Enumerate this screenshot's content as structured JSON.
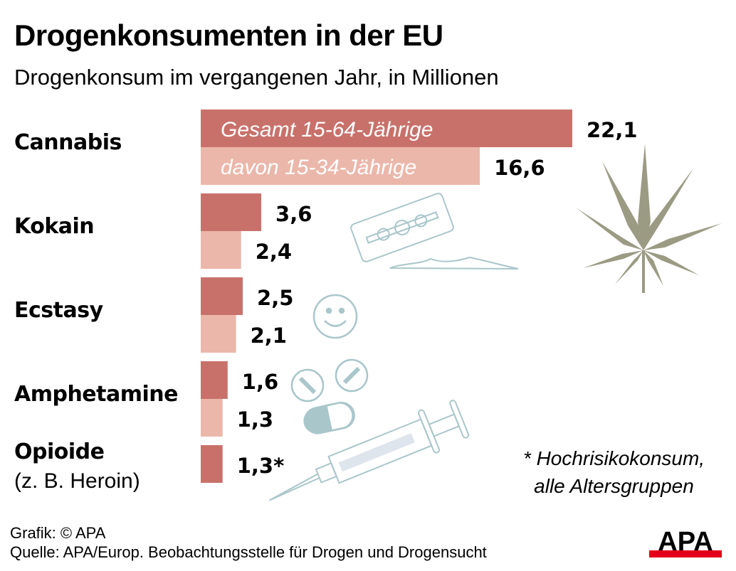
{
  "header": {
    "title": "Drogenkonsumenten in der EU",
    "subtitle": "Drogenkonsum im vergangenen Jahr, in Millionen"
  },
  "chart_data": {
    "type": "bar",
    "orientation": "horizontal",
    "title": "Drogenkonsumenten in der EU",
    "subtitle": "Drogenkonsum im vergangenen Jahr, in Millionen",
    "unit": "Millionen",
    "categories": [
      "Cannabis",
      "Kokain",
      "Ecstasy",
      "Amphetamine",
      "Opioide"
    ],
    "category_sublabels": [
      "",
      "",
      "",
      "",
      "(z. B. Heroin)"
    ],
    "series": [
      {
        "name": "Gesamt 15-64-Jährige",
        "color": "#c8716b",
        "values": [
          22.1,
          3.6,
          2.5,
          1.6,
          1.3
        ],
        "labels": [
          "22,1",
          "3,6",
          "2,5",
          "1,6",
          "1,3*"
        ]
      },
      {
        "name": "davon 15-34-Jährige",
        "color": "#ebb7aa",
        "values": [
          16.6,
          2.4,
          2.1,
          1.3,
          null
        ],
        "labels": [
          "16,6",
          "2,4",
          "2,1",
          "1,3",
          ""
        ]
      }
    ],
    "legend_placement": "inside-first-bars",
    "xlim": [
      0,
      22.1
    ],
    "grid": false,
    "annotation": "* Hochrisikokonsum, alle Altersgruppen"
  },
  "footnote": {
    "line1": "* Hochrisikokonsum,",
    "line2": "alle Altersgruppen"
  },
  "credits": {
    "grafik": "Grafik: © APA",
    "quelle": "Quelle: APA/Europ. Beobachtungsstelle für Drogen und Drogensucht"
  },
  "logo": {
    "text": "APA",
    "accent_color": "#e3001b"
  },
  "icons": [
    "cannabis-leaf-icon",
    "razor-blade-icon",
    "cocaine-powder-icon",
    "smiley-pill-icon",
    "tablet-icon",
    "capsule-icon",
    "syringe-icon"
  ],
  "colors": {
    "bar_total": "#c8716b",
    "bar_young": "#ebb7aa",
    "icon_line": "#a9c6cb",
    "leaf": "#9b9a83"
  }
}
